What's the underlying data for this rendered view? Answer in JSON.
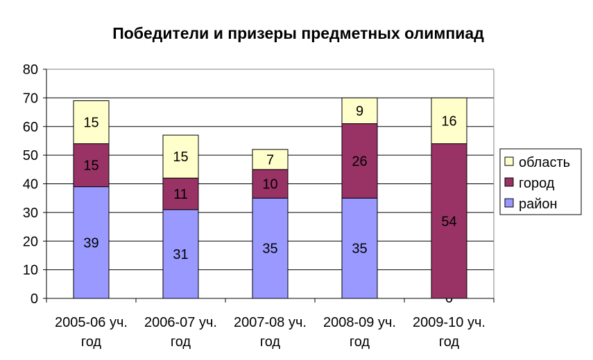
{
  "chart_data": {
    "type": "bar",
    "stacked": true,
    "title": "Победители и призеры предметных олимпиад",
    "categories": [
      [
        "2005-06 уч.",
        "год"
      ],
      [
        "2006-07 уч.",
        "год"
      ],
      [
        "2007-08 уч.",
        "год"
      ],
      [
        "2008-09 уч.",
        "год"
      ],
      [
        "2009-10 уч.",
        "год"
      ]
    ],
    "series": [
      {
        "name": "район",
        "color": "#9999ff",
        "values": [
          39,
          31,
          35,
          35,
          0
        ]
      },
      {
        "name": "город",
        "color": "#993366",
        "values": [
          15,
          11,
          10,
          26,
          54
        ]
      },
      {
        "name": "область",
        "color": "#ffffcc",
        "values": [
          15,
          15,
          7,
          9,
          16
        ]
      }
    ],
    "ylim": [
      0,
      80
    ],
    "yticks": [
      0,
      10,
      20,
      30,
      40,
      50,
      60,
      70,
      80
    ],
    "grid": true,
    "legend": {
      "placement": "right",
      "order": [
        "область",
        "город",
        "район"
      ]
    }
  }
}
